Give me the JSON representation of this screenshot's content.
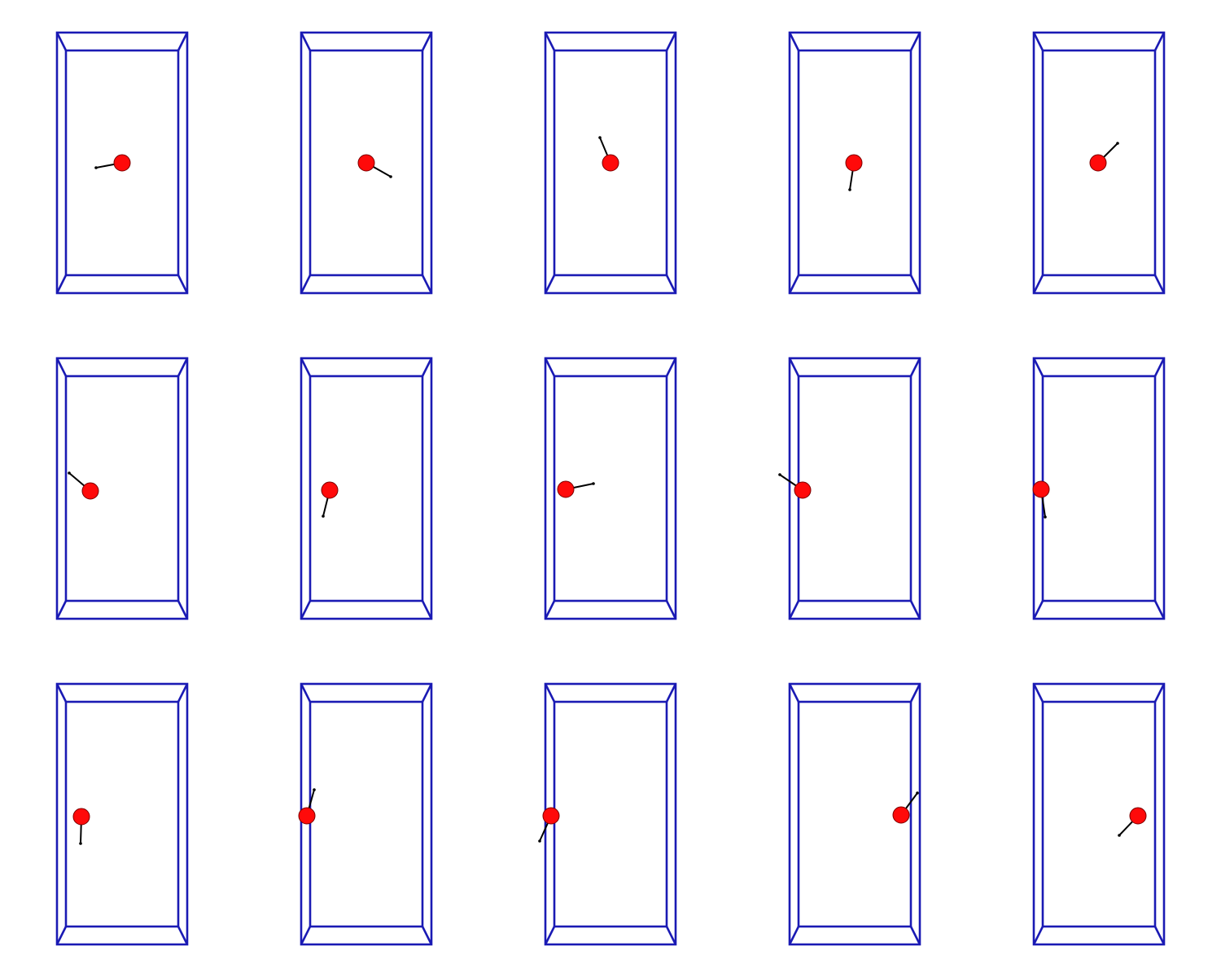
{
  "colors": {
    "background": "#ffffff",
    "box_stroke": "#1a1ab4",
    "ball_fill": "#ff0a0a",
    "ball_stroke": "#7a0000",
    "tail": "#000000"
  },
  "panels": [
    {
      "row": 1,
      "col": 1,
      "ball": [
        150,
        200
      ],
      "tail": [
        118,
        206
      ]
    },
    {
      "row": 1,
      "col": 2,
      "ball": [
        450,
        200
      ],
      "tail": [
        480,
        217
      ]
    },
    {
      "row": 1,
      "col": 3,
      "ball": [
        750,
        200
      ],
      "tail": [
        737,
        169
      ]
    },
    {
      "row": 1,
      "col": 4,
      "ball": [
        1049,
        200
      ],
      "tail": [
        1044,
        233
      ]
    },
    {
      "row": 1,
      "col": 5,
      "ball": [
        1349,
        200
      ],
      "tail": [
        1373,
        176
      ]
    },
    {
      "row": 2,
      "col": 1,
      "ball": [
        111,
        603
      ],
      "tail": [
        85,
        581
      ]
    },
    {
      "row": 2,
      "col": 2,
      "ball": [
        405,
        602
      ],
      "tail": [
        397,
        634
      ]
    },
    {
      "row": 2,
      "col": 3,
      "ball": [
        695,
        601
      ],
      "tail": [
        729,
        594
      ]
    },
    {
      "row": 2,
      "col": 4,
      "ball": [
        986,
        602
      ],
      "tail": [
        958,
        583
      ]
    },
    {
      "row": 2,
      "col": 5,
      "ball": [
        1279,
        601
      ],
      "tail": [
        1284,
        635
      ]
    },
    {
      "row": 3,
      "col": 1,
      "ball": [
        100,
        1003
      ],
      "tail": [
        99,
        1036
      ]
    },
    {
      "row": 3,
      "col": 2,
      "ball": [
        377,
        1002
      ],
      "tail": [
        386,
        970
      ]
    },
    {
      "row": 3,
      "col": 3,
      "ball": [
        677,
        1002
      ],
      "tail": [
        663,
        1033
      ]
    },
    {
      "row": 3,
      "col": 4,
      "ball": [
        1107,
        1001
      ],
      "tail": [
        1127,
        974
      ]
    },
    {
      "row": 3,
      "col": 5,
      "ball": [
        1398,
        1002
      ],
      "tail": [
        1375,
        1026
      ]
    }
  ]
}
